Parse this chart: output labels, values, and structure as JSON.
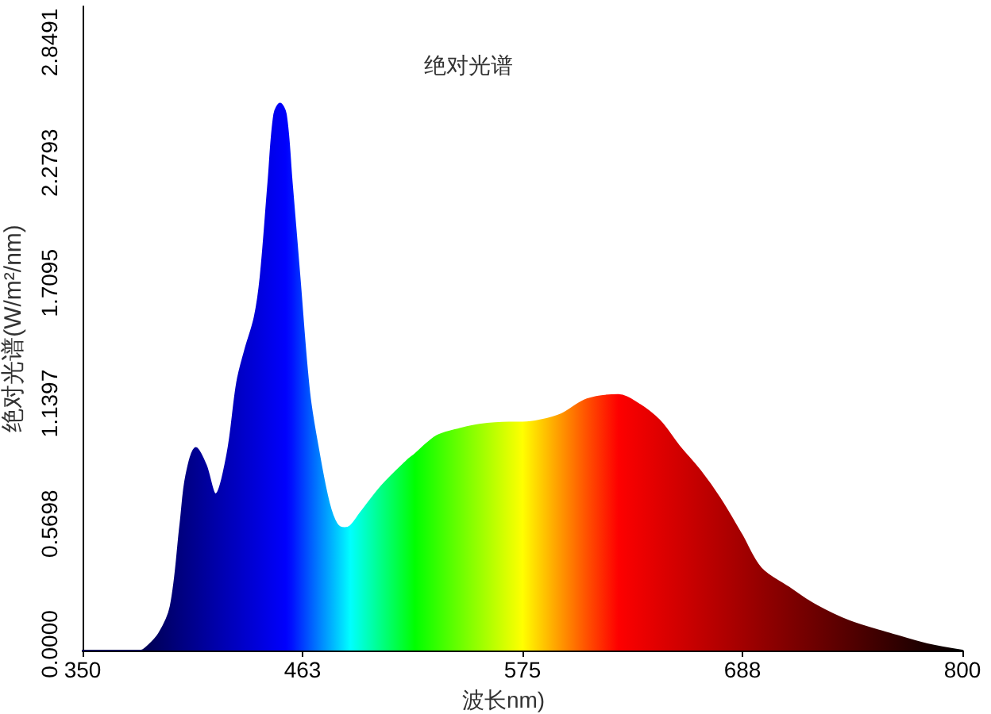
{
  "chart_data": {
    "type": "area",
    "title": "绝对光谱",
    "xlabel": "波长nm)",
    "ylabel": "绝对光谱(W/m²/nm)",
    "marker": "none",
    "x": [
      350,
      380,
      382,
      389,
      395,
      400,
      403,
      408,
      413,
      418,
      424,
      429,
      433,
      438,
      441,
      445,
      448,
      451,
      454,
      457,
      461,
      466,
      471,
      476,
      480,
      484,
      487,
      492,
      503,
      516,
      520,
      526,
      532,
      543,
      553,
      568,
      575,
      584,
      595,
      608,
      624,
      634,
      645,
      655,
      666,
      676,
      687,
      697,
      711,
      724,
      742,
      763,
      782,
      800
    ],
    "series": [
      {
        "values": [
          0,
          0,
          0.01,
          0.08,
          0.21,
          0.6,
          0.83,
          0.96,
          0.88,
          0.74,
          0.93,
          1.27,
          1.42,
          1.58,
          1.77,
          2.22,
          2.54,
          2.59,
          2.54,
          2.22,
          1.77,
          1.22,
          0.93,
          0.7,
          0.6,
          0.58,
          0.59,
          0.65,
          0.78,
          0.9,
          0.93,
          0.98,
          1.02,
          1.05,
          1.07,
          1.08,
          1.08,
          1.09,
          1.12,
          1.19,
          1.21,
          1.17,
          1.09,
          0.97,
          0.85,
          0.72,
          0.55,
          0.39,
          0.3,
          0.22,
          0.14,
          0.08,
          0.03,
          0
        ],
        "colors": [
          "#000050",
          "#000050",
          "#000055",
          "#000065",
          "#000073",
          "#00007f",
          "#000086",
          "#000091",
          "#00009d",
          "#0000a9",
          "#0000b7",
          "#0000c2",
          "#0000cc",
          "#0000d7",
          "#0000de",
          "#0000e8",
          "#0000ef",
          "#0000f6",
          "#0000fd",
          "#0010ff",
          "#0030ff",
          "#0058ff",
          "#0080ff",
          "#00a7ff",
          "#00c7ff",
          "#00e7ff",
          "#00ffff",
          "#00ffd8",
          "#00ff83",
          "#00ff1f",
          "#00ff00",
          "#1cff00",
          "#38ff00",
          "#6bff00",
          "#99ff00",
          "#dfff00",
          "#ffff00",
          "#ffcf00",
          "#ff9500",
          "#ff5000",
          "#fe0000",
          "#ef0000",
          "#df0000",
          "#d10000",
          "#c10000",
          "#b30000",
          "#a30000",
          "#940000",
          "#800000",
          "#6e0000",
          "#540000",
          "#350000",
          "#1a0000",
          "#000000"
        ]
      }
    ],
    "xlim": [
      350,
      800
    ],
    "xticks": [
      350,
      {
        "value": 462.5,
        "label": "463"
      },
      575,
      {
        "value": 687.5,
        "label": "688"
      },
      800
    ],
    "ylim": [
      0,
      3.05
    ],
    "yticks": [
      {
        "value": 0,
        "label": "0.0000"
      },
      0.5698,
      1.1397,
      1.7095,
      2.2793,
      2.8491
    ]
  }
}
